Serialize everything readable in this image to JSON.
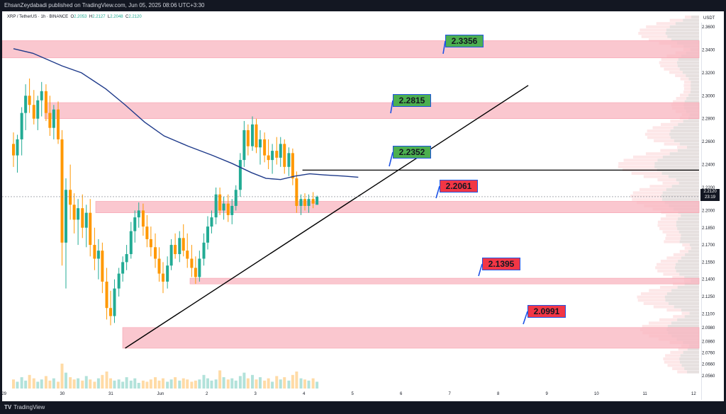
{
  "header": {
    "publisher_line": "EhsanZeydabadi published on TradingView.com, Jun 05, 2025 08:06 UTC+3:30"
  },
  "legend": {
    "symbol": "XRP / TetherUS · 1h · BINANCE",
    "o_label": "O",
    "o_value": "2.2053",
    "h_label": "H",
    "h_value": "2.2127",
    "l_label": "L",
    "l_value": "2.2048",
    "c_label": "C",
    "c_value": "2.2120"
  },
  "currency": "USDT",
  "current_price": {
    "value": "2.2120",
    "countdown": "23:19"
  },
  "footer": {
    "brand": "TradingView"
  },
  "colors": {
    "zone_fill": "#f8b4bf",
    "zone_edge": "#f7a0ae",
    "green_box": "#4caf50",
    "red_box": "#f23645",
    "bull_candle": "#22ab94",
    "bear_candle": "#ff9800",
    "ma_line": "#1e3a8a",
    "trendline": "#000000"
  },
  "chart_data": {
    "type": "candlestick",
    "symbol": "XRP / TetherUS",
    "interval": "1h",
    "exchange": "BINANCE",
    "ylim": [
      2.043,
      2.37
    ],
    "y_ticks": [
      "2.3600",
      "2.3400",
      "2.3200",
      "2.3000",
      "2.2800",
      "2.2600",
      "2.2400",
      "2.2200",
      "2.2000",
      "2.1850",
      "2.1700",
      "2.1550",
      "2.1400",
      "2.1250",
      "2.1100",
      "2.0980",
      "2.0860",
      "2.0760",
      "2.0660",
      "2.0560"
    ],
    "x_ticks": [
      "29",
      "30",
      "31",
      "Jun",
      "2",
      "3",
      "4",
      "5",
      "6",
      "7",
      "8",
      "9",
      "10",
      "11",
      "12"
    ],
    "zones": [
      {
        "low": 2.333,
        "high": 2.348
      },
      {
        "low": 2.28,
        "high": 2.294
      },
      {
        "low": 2.198,
        "high": 2.208
      },
      {
        "low": 2.136,
        "high": 2.141
      },
      {
        "low": 2.08,
        "high": 2.098
      }
    ],
    "levels": [
      {
        "label": "2.3356",
        "color": "green"
      },
      {
        "label": "2.2815",
        "color": "green"
      },
      {
        "label": "2.2352",
        "color": "green"
      },
      {
        "label": "2.2061",
        "color": "red"
      },
      {
        "label": "2.1395",
        "color": "red"
      },
      {
        "label": "2.0991",
        "color": "red"
      }
    ],
    "horizontal_line": 2.2352,
    "trendline": {
      "from": {
        "day": 2.3,
        "price": 2.08
      },
      "to": {
        "day": 10.6,
        "price": 2.309
      }
    },
    "moving_average": [
      {
        "day": 0.0,
        "price": 2.341
      },
      {
        "day": 0.4,
        "price": 2.337
      },
      {
        "day": 1.0,
        "price": 2.326
      },
      {
        "day": 1.4,
        "price": 2.32
      },
      {
        "day": 1.9,
        "price": 2.306
      },
      {
        "day": 2.3,
        "price": 2.292
      },
      {
        "day": 2.7,
        "price": 2.277
      },
      {
        "day": 3.1,
        "price": 2.265
      },
      {
        "day": 3.6,
        "price": 2.256
      },
      {
        "day": 4.1,
        "price": 2.248
      },
      {
        "day": 4.5,
        "price": 2.241
      },
      {
        "day": 4.9,
        "price": 2.233
      },
      {
        "day": 5.2,
        "price": 2.228
      },
      {
        "day": 5.5,
        "price": 2.227
      },
      {
        "day": 5.8,
        "price": 2.23
      },
      {
        "day": 6.1,
        "price": 2.232
      },
      {
        "day": 6.4,
        "price": 2.231
      },
      {
        "day": 6.8,
        "price": 2.23
      },
      {
        "day": 7.1,
        "price": 2.229
      }
    ],
    "candles": [
      {
        "day": 0.0,
        "o": 2.258,
        "h": 2.268,
        "l": 2.238,
        "c": 2.248
      },
      {
        "day": 0.08,
        "o": 2.248,
        "h": 2.266,
        "l": 2.233,
        "c": 2.262
      },
      {
        "day": 0.17,
        "o": 2.262,
        "h": 2.29,
        "l": 2.248,
        "c": 2.285
      },
      {
        "day": 0.25,
        "o": 2.285,
        "h": 2.31,
        "l": 2.27,
        "c": 2.3
      },
      {
        "day": 0.33,
        "o": 2.3,
        "h": 2.315,
        "l": 2.285,
        "c": 2.292
      },
      {
        "day": 0.42,
        "o": 2.292,
        "h": 2.305,
        "l": 2.275,
        "c": 2.28
      },
      {
        "day": 0.5,
        "o": 2.28,
        "h": 2.3,
        "l": 2.27,
        "c": 2.296
      },
      {
        "day": 0.58,
        "o": 2.296,
        "h": 2.312,
        "l": 2.282,
        "c": 2.304
      },
      {
        "day": 0.67,
        "o": 2.304,
        "h": 2.31,
        "l": 2.278,
        "c": 2.285
      },
      {
        "day": 0.75,
        "o": 2.285,
        "h": 2.3,
        "l": 2.265,
        "c": 2.272
      },
      {
        "day": 0.83,
        "o": 2.272,
        "h": 2.292,
        "l": 2.262,
        "c": 2.288
      },
      {
        "day": 0.92,
        "o": 2.288,
        "h": 2.295,
        "l": 2.258,
        "c": 2.262
      },
      {
        "day": 1.0,
        "o": 2.262,
        "h": 2.27,
        "l": 2.152,
        "c": 2.172
      },
      {
        "day": 1.08,
        "o": 2.172,
        "h": 2.228,
        "l": 2.132,
        "c": 2.218
      },
      {
        "day": 1.17,
        "o": 2.218,
        "h": 2.24,
        "l": 2.192,
        "c": 2.205
      },
      {
        "day": 1.25,
        "o": 2.205,
        "h": 2.215,
        "l": 2.18,
        "c": 2.192
      },
      {
        "day": 1.33,
        "o": 2.192,
        "h": 2.21,
        "l": 2.17,
        "c": 2.202
      },
      {
        "day": 1.42,
        "o": 2.202,
        "h": 2.214,
        "l": 2.176,
        "c": 2.185
      },
      {
        "day": 1.5,
        "o": 2.185,
        "h": 2.205,
        "l": 2.168,
        "c": 2.198
      },
      {
        "day": 1.58,
        "o": 2.198,
        "h": 2.21,
        "l": 2.16,
        "c": 2.17
      },
      {
        "day": 1.67,
        "o": 2.17,
        "h": 2.185,
        "l": 2.148,
        "c": 2.158
      },
      {
        "day": 1.75,
        "o": 2.158,
        "h": 2.175,
        "l": 2.14,
        "c": 2.165
      },
      {
        "day": 1.83,
        "o": 2.165,
        "h": 2.172,
        "l": 2.128,
        "c": 2.138
      },
      {
        "day": 1.92,
        "o": 2.138,
        "h": 2.15,
        "l": 2.105,
        "c": 2.115
      },
      {
        "day": 2.0,
        "o": 2.115,
        "h": 2.13,
        "l": 2.1,
        "c": 2.108
      },
      {
        "day": 2.08,
        "o": 2.108,
        "h": 2.14,
        "l": 2.102,
        "c": 2.132
      },
      {
        "day": 2.17,
        "o": 2.132,
        "h": 2.15,
        "l": 2.125,
        "c": 2.145
      },
      {
        "day": 2.25,
        "o": 2.145,
        "h": 2.16,
        "l": 2.138,
        "c": 2.155
      },
      {
        "day": 2.33,
        "o": 2.155,
        "h": 2.17,
        "l": 2.148,
        "c": 2.162
      },
      {
        "day": 2.42,
        "o": 2.162,
        "h": 2.19,
        "l": 2.158,
        "c": 2.182
      },
      {
        "day": 2.5,
        "o": 2.182,
        "h": 2.2,
        "l": 2.172,
        "c": 2.194
      },
      {
        "day": 2.58,
        "o": 2.194,
        "h": 2.207,
        "l": 2.185,
        "c": 2.2
      },
      {
        "day": 2.67,
        "o": 2.2,
        "h": 2.206,
        "l": 2.178,
        "c": 2.186
      },
      {
        "day": 2.75,
        "o": 2.186,
        "h": 2.196,
        "l": 2.168,
        "c": 2.175
      },
      {
        "day": 2.83,
        "o": 2.175,
        "h": 2.186,
        "l": 2.16,
        "c": 2.168
      },
      {
        "day": 2.92,
        "o": 2.168,
        "h": 2.18,
        "l": 2.15,
        "c": 2.158
      },
      {
        "day": 3.0,
        "o": 2.158,
        "h": 2.168,
        "l": 2.138,
        "c": 2.145
      },
      {
        "day": 3.08,
        "o": 2.145,
        "h": 2.155,
        "l": 2.128,
        "c": 2.138
      },
      {
        "day": 3.17,
        "o": 2.138,
        "h": 2.16,
        "l": 2.132,
        "c": 2.152
      },
      {
        "day": 3.25,
        "o": 2.152,
        "h": 2.175,
        "l": 2.148,
        "c": 2.17
      },
      {
        "day": 3.33,
        "o": 2.17,
        "h": 2.18,
        "l": 2.158,
        "c": 2.162
      },
      {
        "day": 3.42,
        "o": 2.162,
        "h": 2.182,
        "l": 2.155,
        "c": 2.176
      },
      {
        "day": 3.5,
        "o": 2.176,
        "h": 2.188,
        "l": 2.16,
        "c": 2.165
      },
      {
        "day": 3.58,
        "o": 2.165,
        "h": 2.18,
        "l": 2.15,
        "c": 2.158
      },
      {
        "day": 3.67,
        "o": 2.158,
        "h": 2.17,
        "l": 2.142,
        "c": 2.15
      },
      {
        "day": 3.75,
        "o": 2.15,
        "h": 2.16,
        "l": 2.136,
        "c": 2.142
      },
      {
        "day": 3.83,
        "o": 2.142,
        "h": 2.165,
        "l": 2.138,
        "c": 2.158
      },
      {
        "day": 3.92,
        "o": 2.158,
        "h": 2.18,
        "l": 2.152,
        "c": 2.172
      },
      {
        "day": 4.0,
        "o": 2.172,
        "h": 2.195,
        "l": 2.166,
        "c": 2.186
      },
      {
        "day": 4.08,
        "o": 2.186,
        "h": 2.2,
        "l": 2.18,
        "c": 2.194
      },
      {
        "day": 4.17,
        "o": 2.194,
        "h": 2.22,
        "l": 2.188,
        "c": 2.214
      },
      {
        "day": 4.25,
        "o": 2.214,
        "h": 2.22,
        "l": 2.196,
        "c": 2.2
      },
      {
        "day": 4.33,
        "o": 2.2,
        "h": 2.212,
        "l": 2.192,
        "c": 2.206
      },
      {
        "day": 4.42,
        "o": 2.206,
        "h": 2.214,
        "l": 2.19,
        "c": 2.196
      },
      {
        "day": 4.5,
        "o": 2.196,
        "h": 2.21,
        "l": 2.188,
        "c": 2.204
      },
      {
        "day": 4.58,
        "o": 2.204,
        "h": 2.222,
        "l": 2.2,
        "c": 2.218
      },
      {
        "day": 4.67,
        "o": 2.218,
        "h": 2.25,
        "l": 2.212,
        "c": 2.244
      },
      {
        "day": 4.75,
        "o": 2.244,
        "h": 2.278,
        "l": 2.238,
        "c": 2.27
      },
      {
        "day": 4.83,
        "o": 2.27,
        "h": 2.275,
        "l": 2.248,
        "c": 2.256
      },
      {
        "day": 4.92,
        "o": 2.256,
        "h": 2.282,
        "l": 2.252,
        "c": 2.275
      },
      {
        "day": 5.0,
        "o": 2.275,
        "h": 2.28,
        "l": 2.25,
        "c": 2.255
      },
      {
        "day": 5.08,
        "o": 2.255,
        "h": 2.27,
        "l": 2.24,
        "c": 2.262
      },
      {
        "day": 5.17,
        "o": 2.262,
        "h": 2.268,
        "l": 2.242,
        "c": 2.248
      },
      {
        "day": 5.25,
        "o": 2.248,
        "h": 2.262,
        "l": 2.236,
        "c": 2.244
      },
      {
        "day": 5.33,
        "o": 2.244,
        "h": 2.258,
        "l": 2.232,
        "c": 2.252
      },
      {
        "day": 5.42,
        "o": 2.252,
        "h": 2.264,
        "l": 2.24,
        "c": 2.246
      },
      {
        "day": 5.5,
        "o": 2.246,
        "h": 2.264,
        "l": 2.238,
        "c": 2.258
      },
      {
        "day": 5.58,
        "o": 2.258,
        "h": 2.262,
        "l": 2.232,
        "c": 2.238
      },
      {
        "day": 5.67,
        "o": 2.238,
        "h": 2.255,
        "l": 2.23,
        "c": 2.25
      },
      {
        "day": 5.75,
        "o": 2.25,
        "h": 2.254,
        "l": 2.222,
        "c": 2.228
      },
      {
        "day": 5.83,
        "o": 2.228,
        "h": 2.234,
        "l": 2.198,
        "c": 2.204
      },
      {
        "day": 5.92,
        "o": 2.204,
        "h": 2.214,
        "l": 2.196,
        "c": 2.21
      },
      {
        "day": 6.0,
        "o": 2.21,
        "h": 2.215,
        "l": 2.2,
        "c": 2.204
      },
      {
        "day": 6.08,
        "o": 2.204,
        "h": 2.214,
        "l": 2.198,
        "c": 2.21
      },
      {
        "day": 6.17,
        "o": 2.21,
        "h": 2.216,
        "l": 2.202,
        "c": 2.206
      },
      {
        "day": 6.25,
        "o": 2.205,
        "h": 2.213,
        "l": 2.205,
        "c": 2.212
      }
    ],
    "volume": [
      8,
      6,
      10,
      7,
      12,
      9,
      6,
      8,
      11,
      7,
      9,
      6,
      22,
      14,
      10,
      8,
      9,
      7,
      11,
      8,
      6,
      9,
      12,
      15,
      9,
      7,
      8,
      6,
      10,
      7,
      9,
      5,
      7,
      6,
      8,
      10,
      7,
      9,
      6,
      8,
      10,
      7,
      9,
      8,
      6,
      7,
      8,
      12,
      9,
      7,
      8,
      16,
      10,
      8,
      9,
      7,
      11,
      14,
      9,
      12,
      8,
      10,
      7,
      9,
      6,
      11,
      8,
      10,
      7,
      12,
      15,
      9,
      8,
      7,
      9,
      6
    ]
  }
}
